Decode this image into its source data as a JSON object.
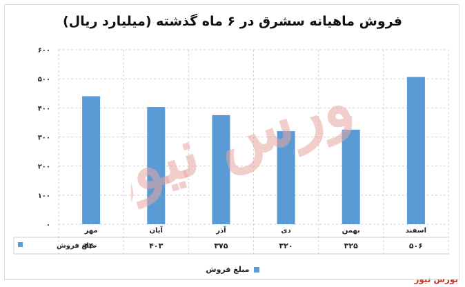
{
  "title": "فروش ماهیانه سشرق در ۶ ماه گذشته (میلیارد ریال)",
  "brand": "بورس نیوز",
  "watermark_text": "بورس نیوز",
  "colors": {
    "bar": "#5b9bd5",
    "grid": "#d0d0d0",
    "brand": "#c0392b",
    "watermark": "#e8a5a0"
  },
  "chart_data": {
    "type": "bar",
    "categories": [
      "مهر",
      "آبان",
      "آذر",
      "دی",
      "بهمن",
      "اسفند"
    ],
    "series": [
      {
        "name": "مبلغ فروش",
        "values": [
          440,
          403,
          375,
          320,
          325,
          506
        ]
      }
    ],
    "value_labels": [
      "۴۴۰",
      "۴۰۳",
      "۳۷۵",
      "۳۲۰",
      "۳۲۵",
      "۵۰۶"
    ],
    "y_ticks": [
      0,
      100,
      200,
      300,
      400,
      500,
      600
    ],
    "y_tick_labels": [
      "۰",
      "۱۰۰",
      "۲۰۰",
      "۳۰۰",
      "۴۰۰",
      "۵۰۰",
      "۶۰۰"
    ],
    "ylim": [
      0,
      600
    ],
    "grid": true,
    "legend": "bottom",
    "data_table": true
  }
}
